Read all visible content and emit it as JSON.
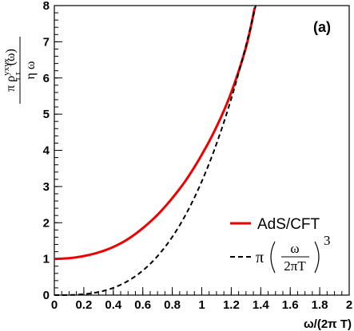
{
  "chart_data": {
    "type": "line",
    "panel_label": "(a)",
    "xlabel": "ω/(2π T)",
    "ylabel": {
      "prefix": "π ρ",
      "superscript": "yxyx",
      "subscript": "τ τ",
      "suffix": "(ω)",
      "denominator": "η ω"
    },
    "xlim": [
      0,
      2
    ],
    "ylim": [
      0,
      8
    ],
    "x_ticks": [
      0,
      0.2,
      0.4,
      0.6,
      0.8,
      1,
      1.2,
      1.4,
      1.6,
      1.8,
      2
    ],
    "x_tick_labels": [
      "0",
      "0.2",
      "0.4",
      "0.6",
      "0.8",
      "1",
      "1.2",
      "1.4",
      "1.6",
      "1.8",
      "2"
    ],
    "y_ticks": [
      0,
      1,
      2,
      3,
      4,
      5,
      6,
      7,
      8
    ],
    "y_tick_labels": [
      "0",
      "1",
      "2",
      "3",
      "4",
      "5",
      "6",
      "7",
      "8"
    ],
    "grid": false,
    "legend_position": "bottom-right",
    "series": [
      {
        "name": "AdS/CFT",
        "color": "#ee0000",
        "style": "solid",
        "x": [
          0,
          0.1,
          0.2,
          0.3,
          0.4,
          0.5,
          0.6,
          0.7,
          0.8,
          0.9,
          1.0,
          1.1,
          1.2,
          1.3,
          1.36
        ],
        "y": [
          1.0,
          1.02,
          1.08,
          1.18,
          1.33,
          1.55,
          1.85,
          2.22,
          2.68,
          3.22,
          3.88,
          4.65,
          5.6,
          6.85,
          7.95
        ]
      },
      {
        "name_parts": {
          "pi": "π",
          "numerator": "ω",
          "denominator": "2πT",
          "exponent": "3"
        },
        "color": "#000000",
        "style": "dashed",
        "formula": "pi*x^3"
      }
    ]
  }
}
